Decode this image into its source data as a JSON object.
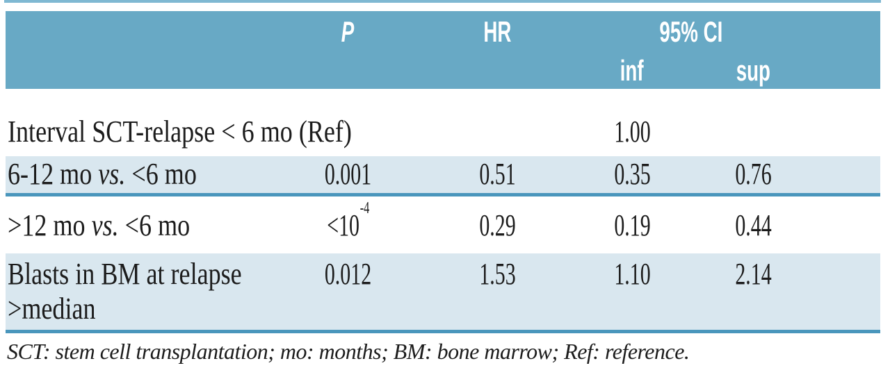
{
  "table": {
    "header": {
      "p": "P",
      "hr": "HR",
      "ci": "95% CI",
      "ci_inf": "inf",
      "ci_sup": "sup"
    },
    "rows": [
      {
        "label": "Interval SCT-relapse < 6 mo (Ref)",
        "label_italic": "",
        "label_post": "",
        "p": "",
        "p_sup": "",
        "hr": "",
        "ci_inf": "1.00",
        "ci_sup": ""
      },
      {
        "label": "6-12 mo ",
        "label_italic": "vs.",
        "label_post": " <6 mo",
        "p": "0.001",
        "p_sup": "",
        "hr": "0.51",
        "ci_inf": "0.35",
        "ci_sup": "0.76"
      },
      {
        "label": ">12 mo ",
        "label_italic": "vs.",
        "label_post": " <6 mo",
        "p": "<10",
        "p_sup": "-4",
        "hr": "0.29",
        "ci_inf": "0.19",
        "ci_sup": "0.44"
      },
      {
        "label": "Blasts in BM at relapse\n>median",
        "label_italic": "",
        "label_post": "",
        "p": "0.012",
        "p_sup": "",
        "hr": "1.53",
        "ci_inf": "1.10",
        "ci_sup": "2.14"
      }
    ],
    "footnote": "SCT: stem cell transplantation; mo: months; BM: bone marrow; Ref: reference."
  },
  "colors": {
    "header_bg": "#68a9c5",
    "row_alt_bg": "#d9e7ef",
    "divider": "#4a96bc",
    "top_rule": "#7fb8d2",
    "header_text": "#ffffff",
    "body_text": "#1c1c1c"
  }
}
